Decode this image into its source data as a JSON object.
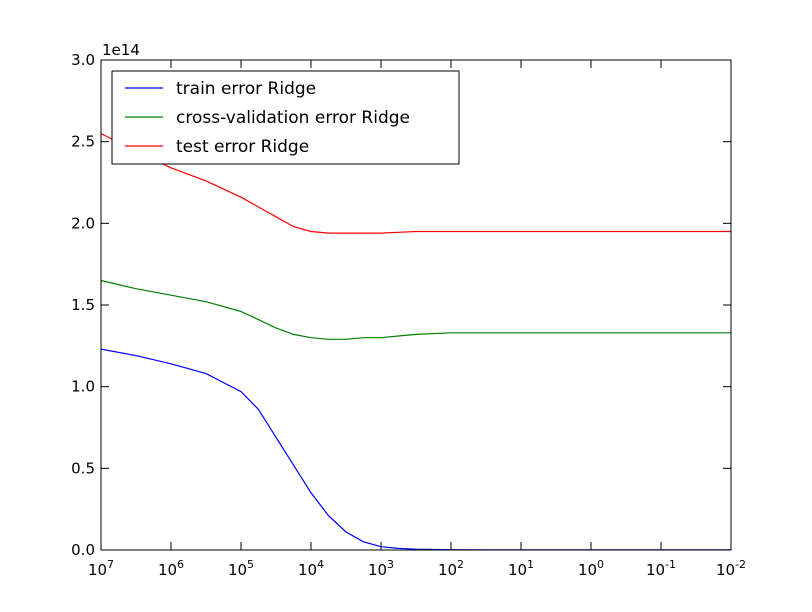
{
  "chart_data": {
    "type": "line",
    "x_scale": "log",
    "x_direction": "decreasing",
    "xlim": [
      10000000,
      0.01
    ],
    "x_tick_labels": [
      {
        "base": "10",
        "exp": "7"
      },
      {
        "base": "10",
        "exp": "6"
      },
      {
        "base": "10",
        "exp": "5"
      },
      {
        "base": "10",
        "exp": "4"
      },
      {
        "base": "10",
        "exp": "3"
      },
      {
        "base": "10",
        "exp": "2"
      },
      {
        "base": "10",
        "exp": "1"
      },
      {
        "base": "10",
        "exp": "0"
      },
      {
        "base": "10",
        "exp": "-1"
      },
      {
        "base": "10",
        "exp": "-2"
      }
    ],
    "x_ticks": [
      10000000,
      1000000,
      100000,
      10000,
      1000,
      100,
      10,
      1,
      0.1,
      0.01
    ],
    "ylim": [
      0,
      3.0
    ],
    "y_ticks": [
      0.0,
      0.5,
      1.0,
      1.5,
      2.0,
      2.5,
      3.0
    ],
    "y_tick_labels": [
      "0.0",
      "0.5",
      "1.0",
      "1.5",
      "2.0",
      "2.5",
      "3.0"
    ],
    "y_offset_label": "1e14",
    "legend_position": "top-left",
    "grid": false,
    "x": [
      10000000,
      3160000,
      1000000,
      316000,
      100000,
      56200,
      31600,
      17800,
      10000,
      5620,
      3160,
      1780,
      1000,
      562,
      316,
      100,
      31.6,
      10,
      1,
      0.1,
      0.01
    ],
    "series": [
      {
        "name": "train error Ridge",
        "color": "#0000ff",
        "values": [
          1.23,
          1.19,
          1.14,
          1.08,
          0.97,
          0.86,
          0.69,
          0.52,
          0.35,
          0.21,
          0.11,
          0.05,
          0.02,
          0.01,
          0.005,
          0.002,
          0.001,
          0.001,
          0.001,
          0.001,
          0.001
        ]
      },
      {
        "name": "cross-validation error Ridge",
        "color": "#008000",
        "values": [
          1.65,
          1.6,
          1.56,
          1.52,
          1.46,
          1.41,
          1.36,
          1.32,
          1.3,
          1.29,
          1.29,
          1.3,
          1.3,
          1.31,
          1.32,
          1.33,
          1.33,
          1.33,
          1.33,
          1.33,
          1.33
        ]
      },
      {
        "name": "test error Ridge",
        "color": "#ff0000",
        "values": [
          2.55,
          2.44,
          2.34,
          2.26,
          2.16,
          2.1,
          2.04,
          1.98,
          1.95,
          1.94,
          1.94,
          1.94,
          1.94,
          1.945,
          1.95,
          1.95,
          1.95,
          1.95,
          1.95,
          1.95,
          1.95
        ]
      }
    ]
  }
}
